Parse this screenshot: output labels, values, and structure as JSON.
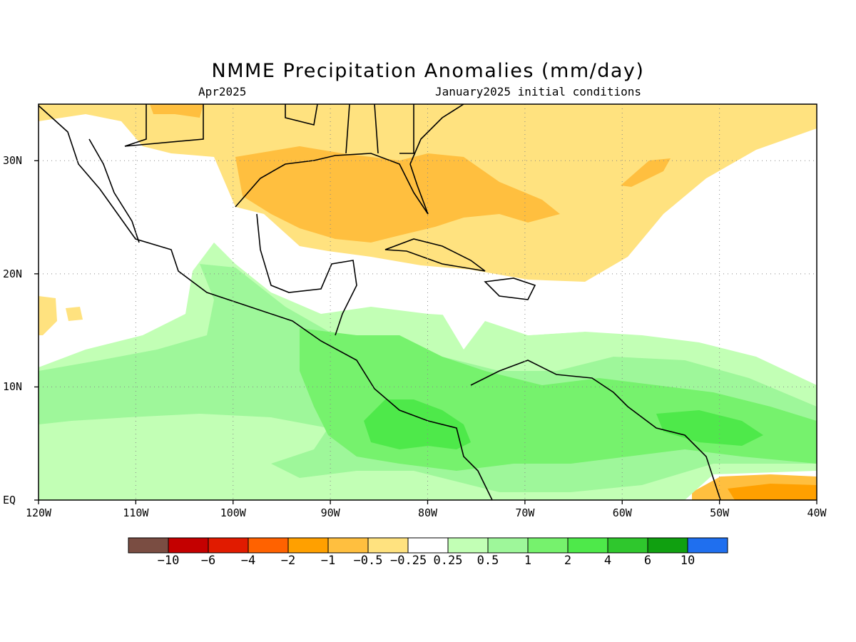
{
  "title": "NMME Precipitation Anomalies (mm/day)",
  "subtitle_left": "Apr2025",
  "subtitle_right": "January2025 initial conditions",
  "map": {
    "lon_range": [
      -120,
      -40
    ],
    "lat_range": [
      0,
      35
    ],
    "lat_ticks": [
      {
        "value": 30,
        "label": "30N"
      },
      {
        "value": 20,
        "label": "20N"
      },
      {
        "value": 10,
        "label": "10N"
      },
      {
        "value": 0,
        "label": "EQ"
      }
    ],
    "lon_ticks": [
      {
        "value": -120,
        "label": "120W"
      },
      {
        "value": -110,
        "label": "110W"
      },
      {
        "value": -100,
        "label": "100W"
      },
      {
        "value": -90,
        "label": "90W"
      },
      {
        "value": -80,
        "label": "80W"
      },
      {
        "value": -70,
        "label": "70W"
      },
      {
        "value": -60,
        "label": "60W"
      },
      {
        "value": -50,
        "label": "50W"
      },
      {
        "value": -40,
        "label": "40W"
      }
    ],
    "grid": true
  },
  "colorbar": {
    "colors": [
      "#7a4d42",
      "#c40000",
      "#e11b00",
      "#ff6200",
      "#ffa000",
      "#ffbf3f",
      "#ffe27f",
      "#ffffff",
      "#c2ffb5",
      "#9ef79a",
      "#76f26d",
      "#4ee94a",
      "#2fc72d",
      "#10a010",
      "#1f6fef"
    ],
    "labels": [
      "-10",
      "-6",
      "-4",
      "-2",
      "-1",
      "-0.5",
      "-0.25",
      "0.25",
      "0.5",
      "1",
      "2",
      "4",
      "6",
      "10"
    ]
  },
  "fills": {
    "orange_light": "#ffe27f",
    "orange_mid": "#ffbf3f",
    "orange_dark": "#ffa000",
    "green_1": "#c2ffb5",
    "green_2": "#9ef79a",
    "green_3": "#76f26d",
    "green_4": "#4ee94a"
  }
}
